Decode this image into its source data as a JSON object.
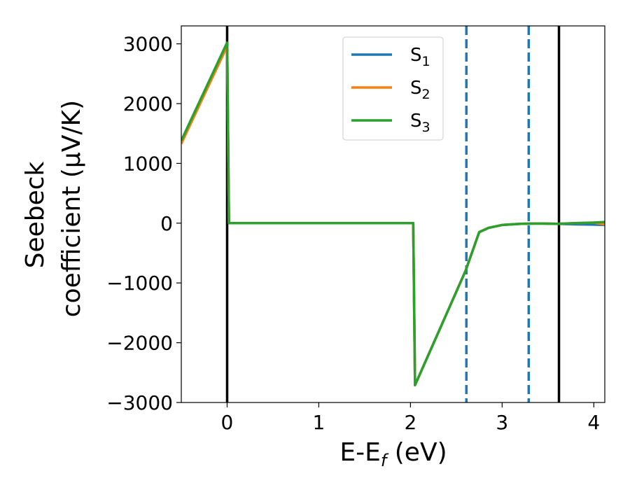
{
  "chart_data": {
    "type": "line",
    "xlabel": "E-E",
    "xlabel_sub": "f",
    "xlabel_unit": " (eV)",
    "ylabel_line1": "Seebeck",
    "ylabel_line2": "coefficient  (μV/K)",
    "xlim": [
      -0.5,
      4.12
    ],
    "ylim": [
      -3000,
      3300
    ],
    "xticks": [
      0,
      1,
      2,
      3,
      4
    ],
    "xtick_labels": [
      "0",
      "1",
      "2",
      "3",
      "4"
    ],
    "yticks": [
      -3000,
      -2000,
      -1000,
      0,
      1000,
      2000,
      3000
    ],
    "ytick_labels": [
      "−3000",
      "−2000",
      "−1000",
      "0",
      "1000",
      "2000",
      "3000"
    ],
    "grid": false,
    "legend_position": "top-center",
    "series": [
      {
        "name": "S",
        "sub": "1",
        "color": "#1f77b4",
        "points": [
          [
            -0.5,
            1380
          ],
          [
            0.0,
            3020
          ],
          [
            0.02,
            0
          ],
          [
            2.03,
            0
          ],
          [
            2.05,
            -2710
          ],
          [
            2.6,
            -800
          ],
          [
            2.75,
            -150
          ],
          [
            2.85,
            -80
          ],
          [
            3.0,
            -30
          ],
          [
            3.2,
            -10
          ],
          [
            3.4,
            -5
          ],
          [
            3.6,
            -10
          ],
          [
            3.8,
            -20
          ],
          [
            4.0,
            -25
          ],
          [
            4.12,
            -30
          ]
        ]
      },
      {
        "name": "S",
        "sub": "2",
        "color": "#ff7f0e",
        "points": [
          [
            -0.5,
            1330
          ],
          [
            0.0,
            2960
          ],
          [
            0.02,
            0
          ],
          [
            2.03,
            0
          ],
          [
            2.05,
            -2710
          ],
          [
            2.6,
            -800
          ],
          [
            2.75,
            -150
          ],
          [
            2.85,
            -80
          ],
          [
            3.0,
            -30
          ],
          [
            3.2,
            -10
          ],
          [
            3.4,
            -5
          ],
          [
            3.6,
            -10
          ],
          [
            3.8,
            0
          ],
          [
            4.0,
            10
          ],
          [
            4.12,
            -20
          ]
        ]
      },
      {
        "name": "S",
        "sub": "3",
        "color": "#2ca02c",
        "points": [
          [
            -0.5,
            1380
          ],
          [
            0.0,
            3020
          ],
          [
            0.02,
            0
          ],
          [
            2.03,
            0
          ],
          [
            2.05,
            -2710
          ],
          [
            2.6,
            -800
          ],
          [
            2.75,
            -150
          ],
          [
            2.85,
            -80
          ],
          [
            3.0,
            -30
          ],
          [
            3.2,
            -10
          ],
          [
            3.4,
            -5
          ],
          [
            3.6,
            -10
          ],
          [
            3.8,
            0
          ],
          [
            4.0,
            10
          ],
          [
            4.12,
            20
          ]
        ]
      }
    ],
    "vlines": [
      {
        "x": 0.0,
        "color": "#000000",
        "style": "solid"
      },
      {
        "x": 2.61,
        "color": "#1f77b4",
        "style": "dashed"
      },
      {
        "x": 3.29,
        "color": "#1f77b4",
        "style": "dashed"
      },
      {
        "x": 3.62,
        "color": "#000000",
        "style": "solid"
      }
    ]
  }
}
